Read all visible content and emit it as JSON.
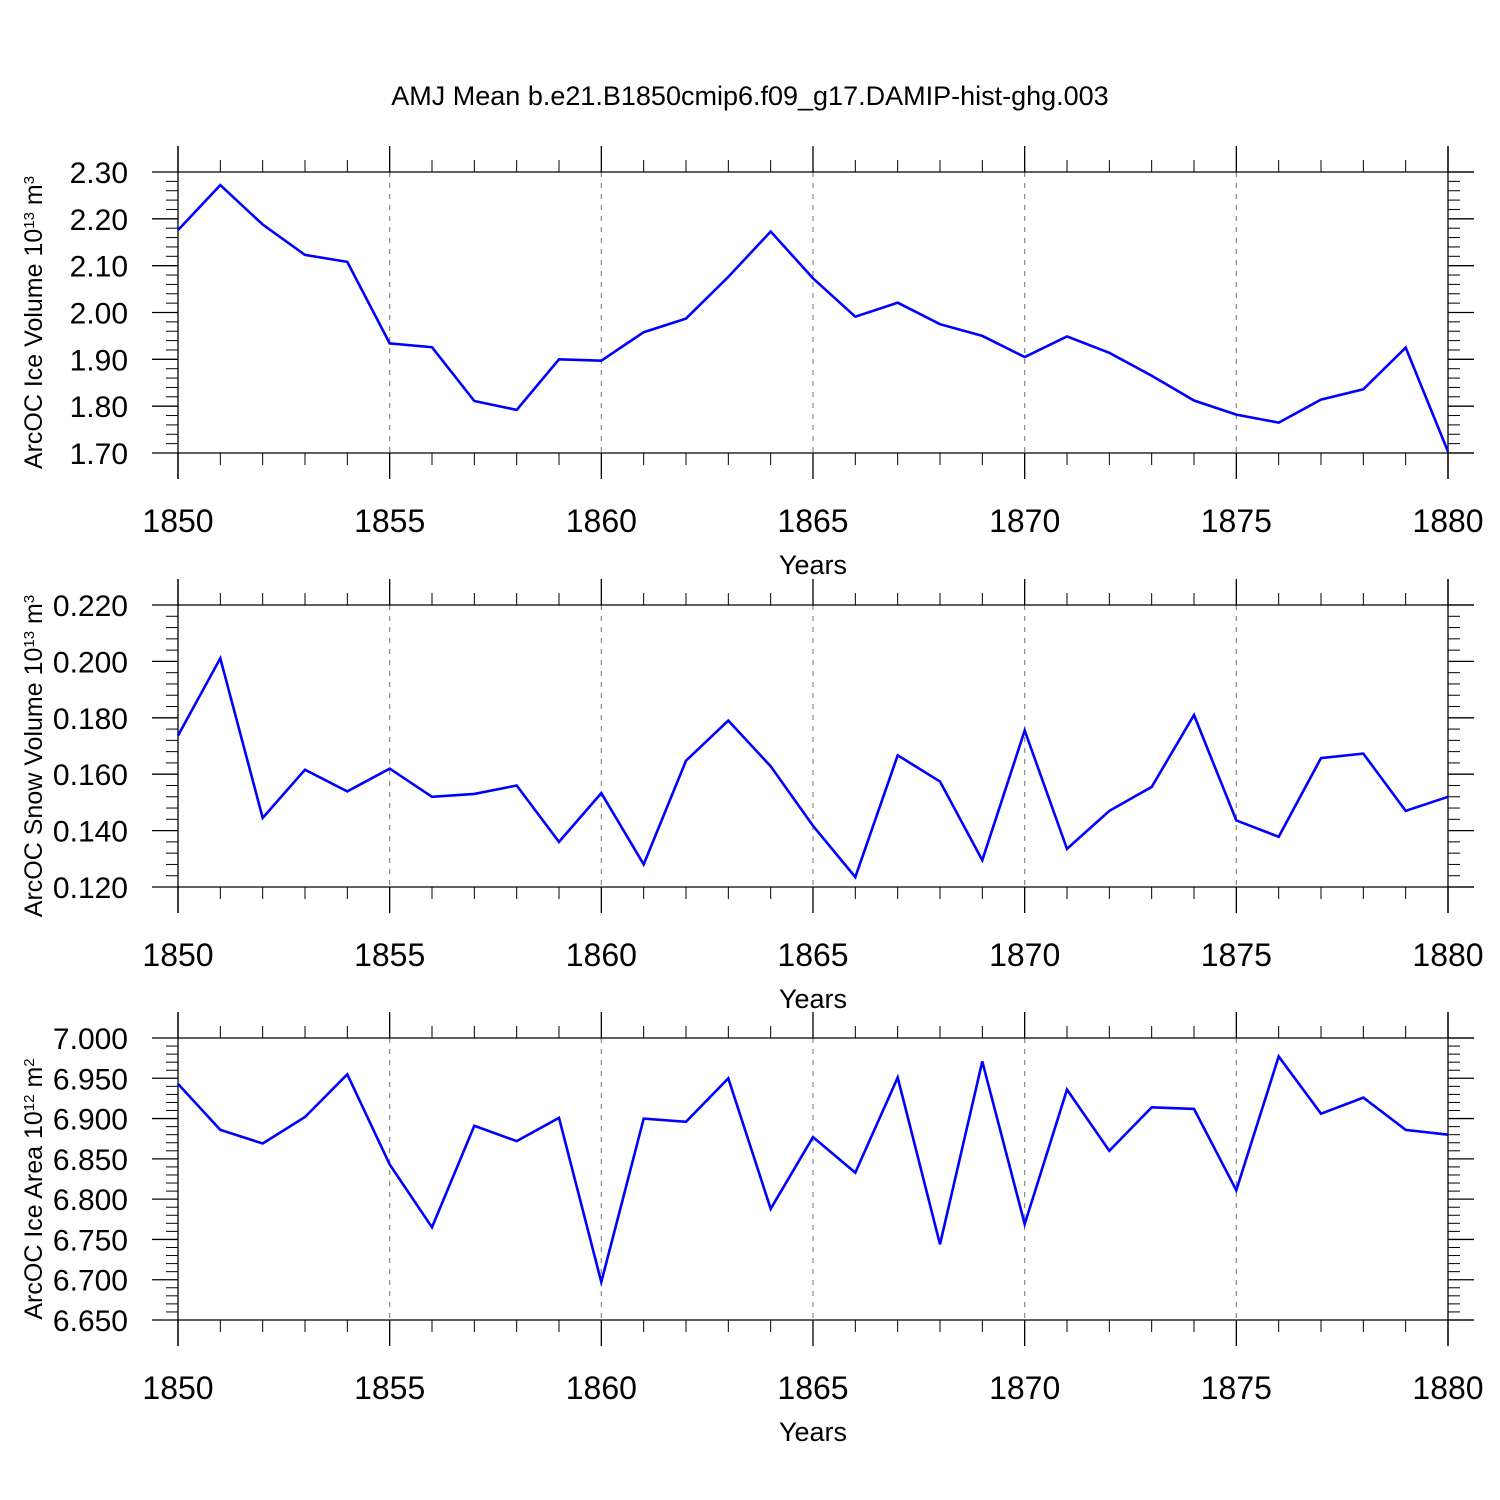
{
  "figure": {
    "title": "AMJ Mean b.e21.B1850cmip6.f09_g17.DAMIP-hist-ghg.003",
    "line_color": "#0000ff",
    "axis_color": "#000000",
    "grid_color": "#888888"
  },
  "chart_data": [
    {
      "type": "line",
      "title": "AMJ Mean b.e21.B1850cmip6.f09_g17.DAMIP-hist-ghg.003",
      "xlabel": "Years",
      "ylabel": {
        "main": "ArcOC Ice Volume 10",
        "exp": "13",
        "unit": " m",
        "unit_exp": "3"
      },
      "xlim": [
        1850,
        1880
      ],
      "ylim": [
        1.7,
        2.3
      ],
      "xticks": [
        1850,
        1855,
        1860,
        1865,
        1870,
        1875,
        1880
      ],
      "xtick_labels": [
        "1850",
        "1855",
        "1860",
        "1865",
        "1870",
        "1875",
        "1880"
      ],
      "yticks": [
        1.7,
        1.8,
        1.9,
        2.0,
        2.1,
        2.2,
        2.3
      ],
      "ytick_labels": [
        "1.70",
        "1.80",
        "1.90",
        "2.00",
        "2.10",
        "2.20",
        "2.30"
      ],
      "grid": "vertical dashed at major x ticks",
      "x": [
        1850,
        1851,
        1852,
        1853,
        1854,
        1855,
        1856,
        1857,
        1858,
        1859,
        1860,
        1861,
        1862,
        1863,
        1864,
        1865,
        1866,
        1867,
        1868,
        1869,
        1870,
        1871,
        1872,
        1873,
        1874,
        1875,
        1876,
        1877,
        1878,
        1879,
        1880
      ],
      "y": [
        2.176,
        2.272,
        2.188,
        2.123,
        2.108,
        1.934,
        1.926,
        1.811,
        1.792,
        1.9,
        1.897,
        1.958,
        1.987,
        2.076,
        2.173,
        2.073,
        1.991,
        2.021,
        1.975,
        1.95,
        1.905,
        1.949,
        1.914,
        1.865,
        1.812,
        1.782,
        1.765,
        1.814,
        1.836,
        1.925,
        1.703
      ]
    },
    {
      "type": "line",
      "xlabel": "Years",
      "ylabel": {
        "main": "ArcOC Snow Volume 10",
        "exp": "13",
        "unit": " m",
        "unit_exp": "3"
      },
      "xlim": [
        1850,
        1880
      ],
      "ylim": [
        0.12,
        0.22
      ],
      "xticks": [
        1850,
        1855,
        1860,
        1865,
        1870,
        1875,
        1880
      ],
      "xtick_labels": [
        "1850",
        "1855",
        "1860",
        "1865",
        "1870",
        "1875",
        "1880"
      ],
      "yticks": [
        0.12,
        0.14,
        0.16,
        0.18,
        0.2,
        0.22
      ],
      "ytick_labels": [
        "0.120",
        "0.140",
        "0.160",
        "0.180",
        "0.200",
        "0.220"
      ],
      "grid": "vertical dashed at major x ticks",
      "x": [
        1850,
        1851,
        1852,
        1853,
        1854,
        1855,
        1856,
        1857,
        1858,
        1859,
        1860,
        1861,
        1862,
        1863,
        1864,
        1865,
        1866,
        1867,
        1868,
        1869,
        1870,
        1871,
        1872,
        1873,
        1874,
        1875,
        1876,
        1877,
        1878,
        1879,
        1880
      ],
      "y": [
        0.1737,
        0.2011,
        0.1445,
        0.1616,
        0.1539,
        0.162,
        0.152,
        0.153,
        0.156,
        0.136,
        0.1533,
        0.128,
        0.1648,
        0.179,
        0.1628,
        0.1417,
        0.1235,
        0.1667,
        0.1574,
        0.1295,
        0.1755,
        0.1335,
        0.147,
        0.1555,
        0.181,
        0.1436,
        0.1378,
        0.1657,
        0.1673,
        0.147,
        0.152
      ]
    },
    {
      "type": "line",
      "xlabel": "Years",
      "ylabel": {
        "main": "ArcOC Ice Area 10",
        "exp": "12",
        "unit": " m",
        "unit_exp": "2"
      },
      "xlim": [
        1850,
        1880
      ],
      "ylim": [
        6.65,
        7.0
      ],
      "xticks": [
        1850,
        1855,
        1860,
        1865,
        1870,
        1875,
        1880
      ],
      "xtick_labels": [
        "1850",
        "1855",
        "1860",
        "1865",
        "1870",
        "1875",
        "1880"
      ],
      "yticks": [
        6.65,
        6.7,
        6.75,
        6.8,
        6.85,
        6.9,
        6.95,
        7.0
      ],
      "ytick_labels": [
        "6.650",
        "6.700",
        "6.750",
        "6.800",
        "6.850",
        "6.900",
        "6.950",
        "7.000"
      ],
      "grid": "vertical dashed at major x ticks",
      "x": [
        1850,
        1851,
        1852,
        1853,
        1854,
        1855,
        1856,
        1857,
        1858,
        1859,
        1860,
        1861,
        1862,
        1863,
        1864,
        1865,
        1866,
        1867,
        1868,
        1869,
        1870,
        1871,
        1872,
        1873,
        1874,
        1875,
        1876,
        1877,
        1878,
        1879,
        1880
      ],
      "y": [
        6.943,
        6.886,
        6.869,
        6.902,
        6.955,
        6.843,
        6.765,
        6.891,
        6.872,
        6.901,
        6.697,
        6.9,
        6.896,
        6.95,
        6.788,
        6.877,
        6.833,
        6.951,
        6.744,
        6.971,
        6.769,
        6.936,
        6.86,
        6.914,
        6.912,
        6.811,
        6.977,
        6.906,
        6.926,
        6.886,
        6.88
      ]
    }
  ]
}
